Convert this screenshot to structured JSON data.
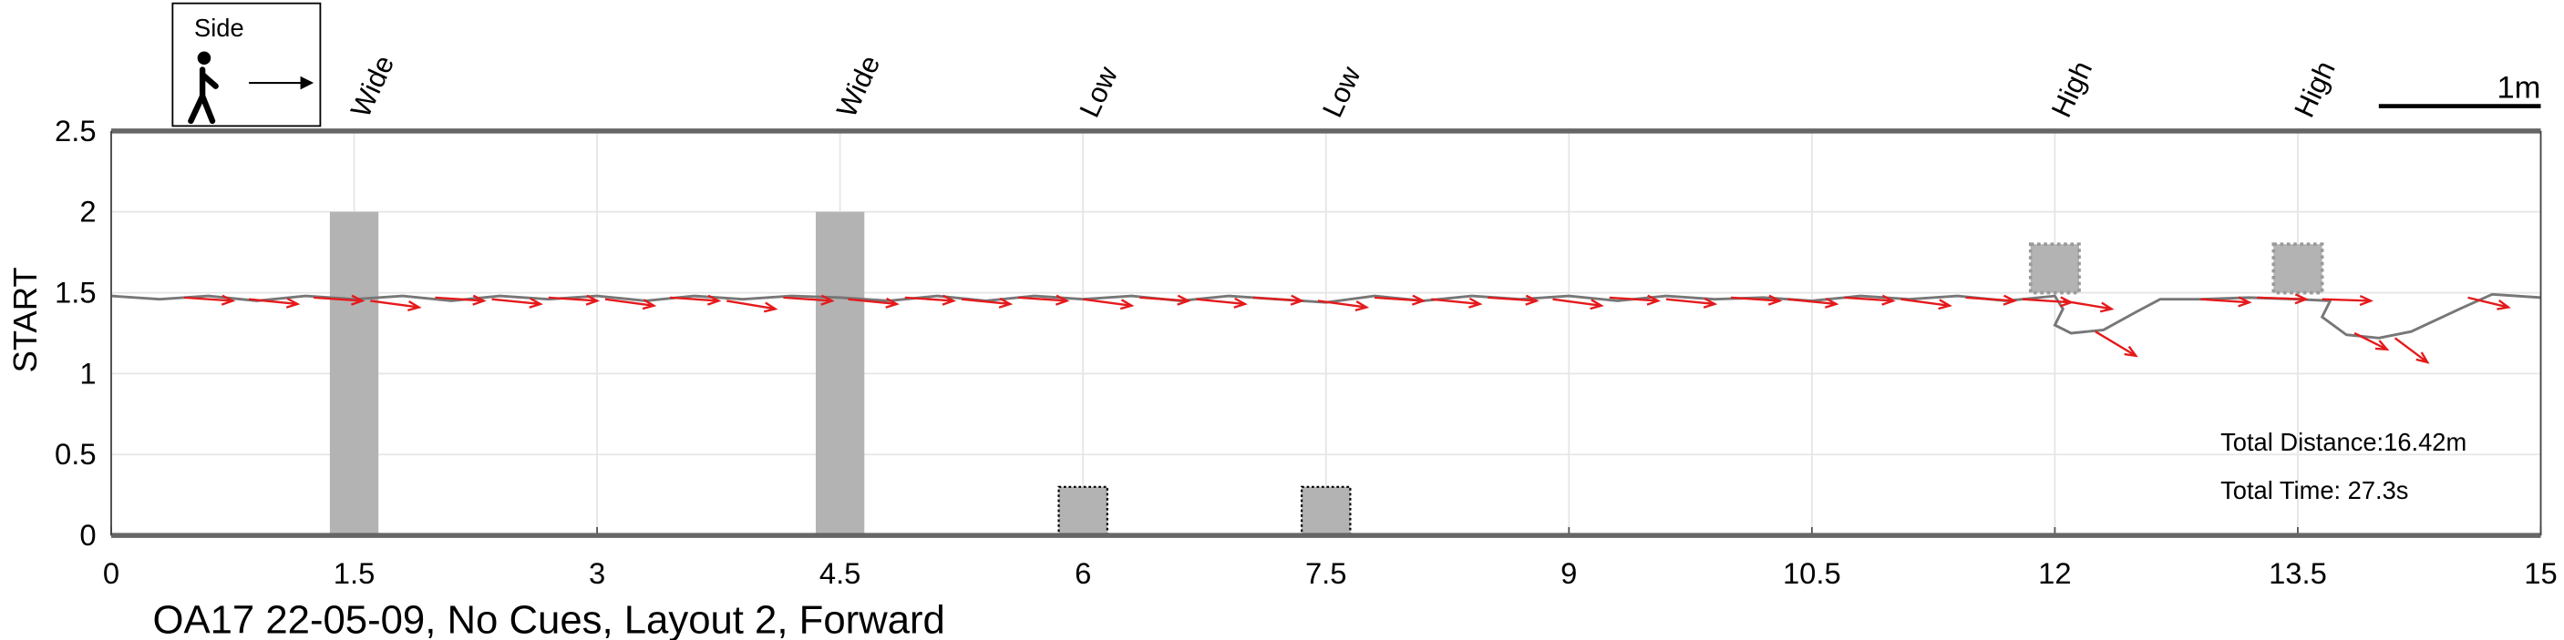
{
  "chart_data": {
    "type": "trajectory",
    "title": "OA17 22-05-09, No Cues, Layout 2, Forward",
    "ylabel": "START",
    "legend_label": "Side",
    "scale_label": "1m",
    "annotations": [
      "Total Distance:16.42m",
      "Total Time: 27.3s"
    ],
    "xlim": [
      0,
      15
    ],
    "ylim": [
      0,
      2.5
    ],
    "xticks": [
      0,
      1.5,
      3,
      4.5,
      6,
      7.5,
      9,
      10.5,
      12,
      13.5,
      15
    ],
    "yticks": [
      0,
      0.5,
      1,
      1.5,
      2,
      2.5
    ],
    "grid": true,
    "path_color": "#777777",
    "arrow_color": "#e41a1c",
    "obstacle_color": "#b3b3b3",
    "obstacles": [
      {
        "label": "Wide",
        "x": [
          1.35,
          1.65
        ],
        "y": [
          0,
          2
        ]
      },
      {
        "label": "Wide",
        "x": [
          4.35,
          4.65
        ],
        "y": [
          0,
          2
        ]
      },
      {
        "label": "Low",
        "x": [
          5.85,
          6.15
        ],
        "y": [
          0,
          0.3
        ]
      },
      {
        "label": "Low",
        "x": [
          7.35,
          7.65
        ],
        "y": [
          0,
          0.3
        ]
      },
      {
        "label": "High",
        "x": [
          11.85,
          12.15
        ],
        "y": [
          1.5,
          1.8
        ]
      },
      {
        "label": "High",
        "x": [
          13.35,
          13.65
        ],
        "y": [
          1.5,
          1.8
        ]
      }
    ],
    "path": {
      "x": [
        0,
        0.3,
        0.6,
        0.9,
        1.2,
        1.5,
        1.8,
        2.1,
        2.4,
        2.7,
        3.0,
        3.3,
        3.6,
        3.9,
        4.2,
        4.5,
        4.8,
        5.1,
        5.4,
        5.7,
        6.0,
        6.3,
        6.6,
        6.9,
        7.2,
        7.5,
        7.8,
        8.1,
        8.4,
        8.7,
        9.0,
        9.3,
        9.6,
        9.9,
        10.2,
        10.5,
        10.8,
        11.1,
        11.4,
        11.7,
        12.0,
        12.05,
        12.0,
        12.1,
        12.3,
        12.5,
        12.65,
        12.9,
        13.2,
        13.5,
        13.7,
        13.65,
        13.8,
        14.0,
        14.2,
        14.5,
        14.7,
        15
      ],
      "y": [
        1.48,
        1.46,
        1.48,
        1.45,
        1.48,
        1.46,
        1.48,
        1.45,
        1.48,
        1.46,
        1.48,
        1.45,
        1.48,
        1.46,
        1.48,
        1.47,
        1.45,
        1.48,
        1.45,
        1.48,
        1.46,
        1.48,
        1.45,
        1.48,
        1.46,
        1.44,
        1.48,
        1.45,
        1.48,
        1.46,
        1.48,
        1.45,
        1.48,
        1.46,
        1.47,
        1.45,
        1.48,
        1.46,
        1.48,
        1.45,
        1.48,
        1.4,
        1.3,
        1.25,
        1.27,
        1.38,
        1.46,
        1.46,
        1.47,
        1.46,
        1.45,
        1.35,
        1.24,
        1.22,
        1.26,
        1.4,
        1.49,
        1.47
      ]
    },
    "arrows": {
      "x": [
        0.45,
        0.85,
        1.25,
        1.6,
        2.0,
        2.35,
        2.7,
        3.05,
        3.45,
        3.8,
        4.15,
        4.55,
        4.9,
        5.25,
        5.6,
        6.0,
        6.35,
        6.7,
        7.05,
        7.45,
        7.8,
        8.15,
        8.5,
        8.9,
        9.25,
        9.6,
        10.0,
        10.35,
        10.7,
        11.05,
        11.45,
        11.8,
        12.05,
        12.25,
        12.9,
        13.25,
        13.65,
        13.85,
        14.1,
        14.55
      ],
      "y": [
        1.47,
        1.46,
        1.47,
        1.45,
        1.47,
        1.46,
        1.47,
        1.46,
        1.47,
        1.45,
        1.47,
        1.46,
        1.47,
        1.46,
        1.47,
        1.46,
        1.47,
        1.46,
        1.47,
        1.45,
        1.47,
        1.46,
        1.47,
        1.46,
        1.47,
        1.46,
        1.47,
        1.46,
        1.47,
        1.46,
        1.47,
        1.46,
        1.45,
        1.26,
        1.46,
        1.47,
        1.46,
        1.25,
        1.22,
        1.47
      ],
      "u": [
        0.3,
        0.3,
        0.3,
        0.3,
        0.3,
        0.3,
        0.3,
        0.3,
        0.3,
        0.3,
        0.3,
        0.3,
        0.3,
        0.3,
        0.3,
        0.3,
        0.3,
        0.3,
        0.3,
        0.3,
        0.3,
        0.3,
        0.3,
        0.3,
        0.3,
        0.3,
        0.3,
        0.3,
        0.3,
        0.3,
        0.3,
        0.3,
        0.3,
        0.25,
        0.3,
        0.3,
        0.3,
        0.2,
        0.2,
        0.25
      ],
      "v": [
        -0.02,
        -0.03,
        -0.02,
        -0.04,
        -0.02,
        -0.03,
        -0.02,
        -0.04,
        -0.02,
        -0.05,
        -0.02,
        -0.03,
        -0.02,
        -0.03,
        -0.02,
        -0.04,
        -0.02,
        -0.03,
        -0.02,
        -0.04,
        -0.02,
        -0.03,
        -0.02,
        -0.04,
        -0.02,
        -0.03,
        -0.02,
        -0.03,
        -0.02,
        -0.04,
        -0.02,
        -0.02,
        -0.05,
        -0.15,
        -0.02,
        -0.01,
        -0.01,
        -0.1,
        -0.15,
        -0.06
      ]
    }
  }
}
